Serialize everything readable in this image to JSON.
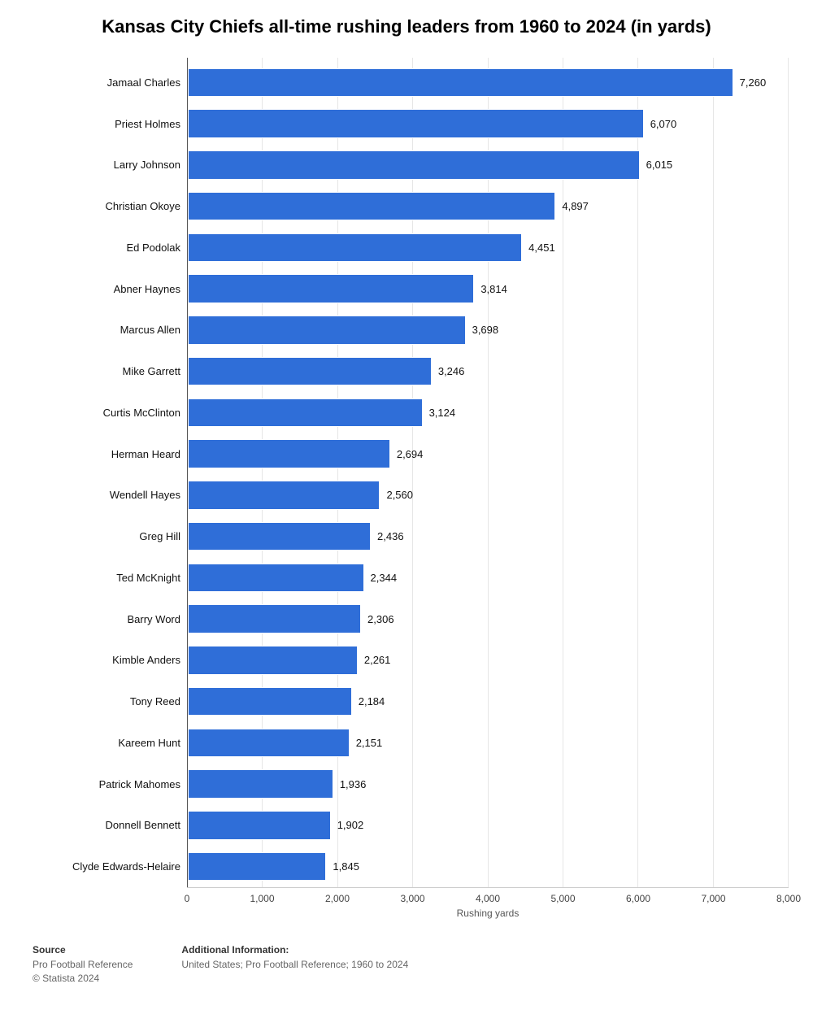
{
  "chart": {
    "type": "bar",
    "title": "Kansas City Chiefs all-time rushing leaders from 1960 to 2024 (in yards)",
    "categories": [
      "Jamaal Charles",
      "Priest Holmes",
      "Larry Johnson",
      "Christian Okoye",
      "Ed Podolak",
      "Abner Haynes",
      "Marcus Allen",
      "Mike Garrett",
      "Curtis McClinton",
      "Herman Heard",
      "Wendell Hayes",
      "Greg Hill",
      "Ted McKnight",
      "Barry Word",
      "Kimble Anders",
      "Tony Reed",
      "Kareem Hunt",
      "Patrick Mahomes",
      "Donnell Bennett",
      "Clyde Edwards-Helaire"
    ],
    "values": [
      7260,
      6070,
      6015,
      4897,
      4451,
      3814,
      3698,
      3246,
      3124,
      2694,
      2560,
      2436,
      2344,
      2306,
      2261,
      2184,
      2151,
      1936,
      1902,
      1845
    ],
    "value_labels": [
      "7,260",
      "6,070",
      "6,015",
      "4,897",
      "4,451",
      "3,814",
      "3,698",
      "3,246",
      "3,124",
      "2,694",
      "2,560",
      "2,436",
      "2,344",
      "2,306",
      "2,261",
      "2,184",
      "2,151",
      "1,936",
      "1,902",
      "1,845"
    ],
    "bar_color": "#2f6ed8",
    "grid_color": "#e6e6e6",
    "background_color": "#ffffff",
    "xlim": [
      0,
      8000
    ],
    "xtick_step": 1000,
    "xtick_labels": [
      "0",
      "1,000",
      "2,000",
      "3,000",
      "4,000",
      "5,000",
      "6,000",
      "7,000",
      "8,000"
    ],
    "xlabel": "Rushing yards",
    "title_fontsize": 22,
    "label_fontsize": 13,
    "tick_fontsize": 12
  },
  "footer": {
    "source_heading": "Source",
    "source_line1": "Pro Football Reference",
    "source_line2": "© Statista 2024",
    "info_heading": "Additional Information:",
    "info_text": "United States; Pro Football Reference; 1960 to 2024"
  }
}
